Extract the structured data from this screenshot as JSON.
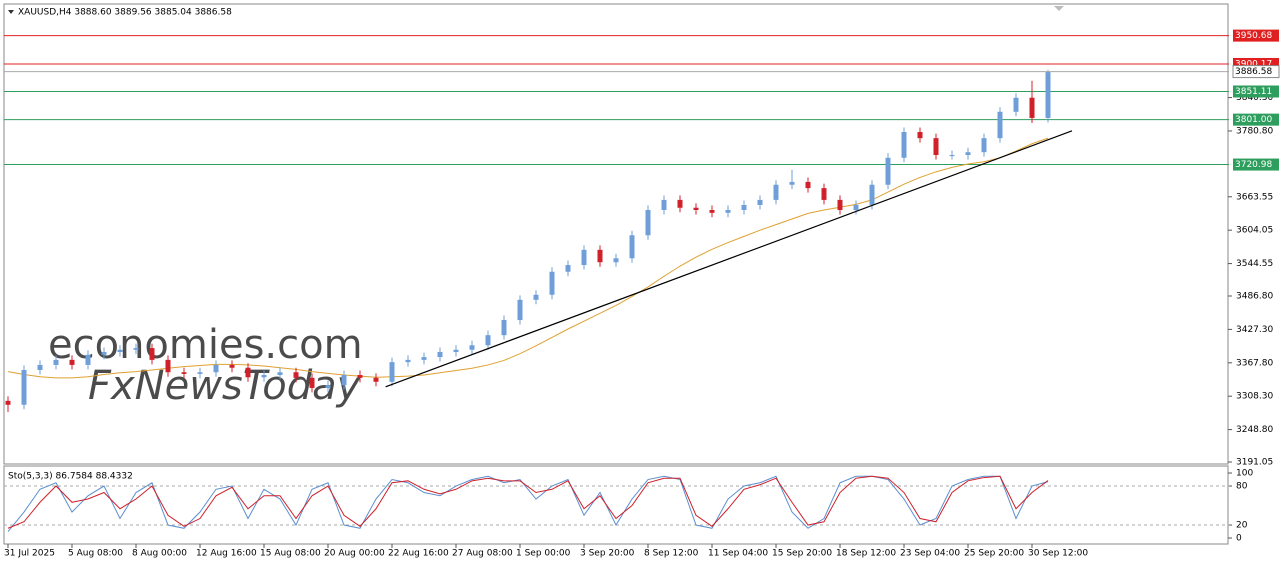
{
  "chart_data": [
    {
      "type": "candlestick",
      "title": "XAUUSD,H4  3888.60 3889.56 3885.04 3886.58",
      "watermark": [
        "economies.com",
        "FxNewsToday"
      ],
      "categories": [
        "31 Jul 2025",
        null,
        null,
        null,
        "5 Aug 08:00",
        null,
        null,
        null,
        "8 Aug 00:00",
        null,
        null,
        null,
        "12 Aug 16:00",
        null,
        null,
        null,
        "15 Aug 08:00",
        null,
        null,
        null,
        "20 Aug 00:00",
        null,
        null,
        null,
        "22 Aug 16:00",
        null,
        null,
        null,
        "27 Aug 08:00",
        null,
        null,
        null,
        "1 Sep 00:00",
        null,
        null,
        null,
        "3 Sep 20:00",
        null,
        null,
        null,
        "8 Sep 12:00",
        null,
        null,
        null,
        "11 Sep 04:00",
        null,
        null,
        null,
        "15 Sep 20:00",
        null,
        null,
        null,
        "18 Sep 12:00",
        null,
        null,
        null,
        "23 Sep 04:00",
        null,
        null,
        null,
        "25 Sep 20:00",
        null,
        null,
        null,
        "30 Sep 12:00",
        null
      ],
      "open": [
        3300,
        3293,
        3355,
        3364,
        3373,
        3364,
        3382,
        3387,
        3391,
        3394,
        3373,
        3351,
        3348,
        3351,
        3364,
        3359,
        3342,
        3346,
        3351,
        3341,
        3323,
        3328,
        3346,
        3341,
        3334,
        3369,
        3373,
        3378,
        3387,
        3391,
        3399,
        3417,
        3444,
        3480,
        3489,
        3530,
        3542,
        3569,
        3547,
        3554,
        3595,
        3640,
        3658,
        3644,
        3640,
        3635,
        3640,
        3649,
        3658,
        3685,
        3690,
        3679,
        3658,
        3640,
        3649,
        3685,
        3733,
        3779,
        3768,
        3738,
        3738,
        3743,
        3768,
        3815,
        3840,
        3804
      ],
      "high": [
        3308,
        3363,
        3372,
        3381,
        3381,
        3390,
        3395,
        3399,
        3402,
        3402,
        3381,
        3359,
        3359,
        3372,
        3372,
        3367,
        3354,
        3359,
        3359,
        3349,
        3336,
        3354,
        3354,
        3349,
        3377,
        3381,
        3386,
        3395,
        3399,
        3407,
        3425,
        3452,
        3488,
        3497,
        3538,
        3550,
        3577,
        3577,
        3562,
        3603,
        3648,
        3666,
        3666,
        3652,
        3648,
        3648,
        3657,
        3666,
        3693,
        3712,
        3698,
        3687,
        3666,
        3657,
        3693,
        3741,
        3787,
        3787,
        3776,
        3746,
        3751,
        3776,
        3823,
        3848,
        3870,
        3889.56
      ],
      "low": [
        3280,
        3285,
        3347,
        3356,
        3356,
        3356,
        3374,
        3379,
        3383,
        3365,
        3343,
        3340,
        3340,
        3343,
        3351,
        3334,
        3334,
        3338,
        3333,
        3315,
        3315,
        3320,
        3333,
        3326,
        3326,
        3361,
        3365,
        3370,
        3379,
        3383,
        3391,
        3409,
        3436,
        3472,
        3481,
        3522,
        3534,
        3539,
        3539,
        3546,
        3587,
        3632,
        3636,
        3632,
        3627,
        3627,
        3632,
        3641,
        3650,
        3677,
        3671,
        3650,
        3632,
        3632,
        3641,
        3677,
        3725,
        3760,
        3730,
        3730,
        3730,
        3735,
        3760,
        3807,
        3795,
        3796
      ],
      "close": [
        3293,
        3355,
        3364,
        3373,
        3364,
        3382,
        3387,
        3391,
        3394,
        3373,
        3351,
        3348,
        3351,
        3364,
        3359,
        3342,
        3346,
        3351,
        3341,
        3323,
        3328,
        3346,
        3341,
        3334,
        3369,
        3373,
        3378,
        3387,
        3391,
        3399,
        3417,
        3444,
        3480,
        3489,
        3530,
        3542,
        3569,
        3547,
        3554,
        3595,
        3640,
        3658,
        3644,
        3640,
        3635,
        3640,
        3649,
        3658,
        3685,
        3690,
        3679,
        3658,
        3640,
        3649,
        3685,
        3733,
        3779,
        3768,
        3738,
        3738,
        3743,
        3768,
        3815,
        3840,
        3804,
        3886.58
      ],
      "up_color": "#6f9fd8",
      "down_color": "#d0202a",
      "ma": {
        "color": "#e0a030",
        "values": [
          3352,
          3347,
          3343,
          3341,
          3341,
          3343,
          3347,
          3350,
          3352,
          3355,
          3358,
          3361,
          3363,
          3365,
          3365,
          3364,
          3362,
          3359,
          3356,
          3352,
          3349,
          3346,
          3344,
          3342,
          3343,
          3344,
          3346,
          3350,
          3354,
          3358,
          3364,
          3372,
          3384,
          3398,
          3413,
          3428,
          3442,
          3456,
          3470,
          3486,
          3503,
          3522,
          3540,
          3556,
          3570,
          3582,
          3593,
          3604,
          3614,
          3624,
          3634,
          3640,
          3645,
          3650,
          3658,
          3672,
          3686,
          3698,
          3708,
          3716,
          3722,
          3726,
          3733,
          3745,
          3758,
          3768
        ]
      },
      "trendline": {
        "x": [
          23.6,
          66.5
        ],
        "y": [
          3325,
          3781
        ],
        "color": "#000000"
      },
      "levels": [
        {
          "value": 3950.68,
          "color": "#e02020"
        },
        {
          "value": 3900.17,
          "color": "#e02020"
        },
        {
          "value": 3851.11,
          "color": "#2e9e5e"
        },
        {
          "value": 3801,
          "label": "3801.00",
          "color": "#2e9e5e"
        },
        {
          "value": 3720.98,
          "color": "#2e9e5e"
        }
      ],
      "ylim": [
        3187.5,
        4007
      ],
      "yticks": [
        3191.05,
        {
          "value": 3248.8,
          "label": "3248.80"
        },
        {
          "value": 3308.3,
          "label": "3308.30"
        },
        {
          "value": 3367.8,
          "label": "3367.80"
        },
        {
          "value": 3427.3,
          "label": "3427.30"
        },
        {
          "value": 3486.8,
          "label": "3486.80"
        },
        3544.55,
        3604.05,
        3663.55,
        {
          "value": 3780.8,
          "label": "3780.80"
        },
        {
          "value": 3840.3,
          "label": "3840.30"
        }
      ]
    },
    {
      "type": "line",
      "title": "Sto(5,3,3) 86.7584 88.4332",
      "series": [
        {
          "color": "#5b8fd0",
          "values": [
            10,
            40,
            75,
            85,
            40,
            65,
            80,
            30,
            70,
            85,
            20,
            15,
            40,
            75,
            80,
            30,
            75,
            60,
            20,
            75,
            85,
            20,
            15,
            60,
            90,
            85,
            70,
            65,
            80,
            90,
            95,
            85,
            90,
            60,
            80,
            90,
            35,
            70,
            20,
            60,
            90,
            95,
            90,
            20,
            15,
            60,
            80,
            85,
            95,
            40,
            15,
            30,
            85,
            95,
            95,
            90,
            60,
            20,
            30,
            80,
            90,
            95,
            95,
            30,
            80,
            86.7584
          ]
        },
        {
          "color": "#d0202a",
          "values": [
            15,
            25,
            55,
            80,
            55,
            60,
            70,
            45,
            60,
            80,
            35,
            18,
            30,
            65,
            78,
            45,
            65,
            65,
            30,
            65,
            80,
            35,
            18,
            45,
            85,
            88,
            75,
            68,
            75,
            88,
            92,
            88,
            88,
            70,
            75,
            88,
            45,
            65,
            30,
            50,
            85,
            92,
            92,
            35,
            18,
            45,
            75,
            82,
            92,
            55,
            20,
            25,
            70,
            92,
            95,
            92,
            70,
            30,
            25,
            70,
            88,
            93,
            95,
            45,
            70,
            88.4332
          ]
        }
      ],
      "levels": [
        80,
        20
      ],
      "ylim": [
        -9.2,
        110.8
      ],
      "yticks": [
        0,
        20,
        80,
        100
      ]
    }
  ]
}
